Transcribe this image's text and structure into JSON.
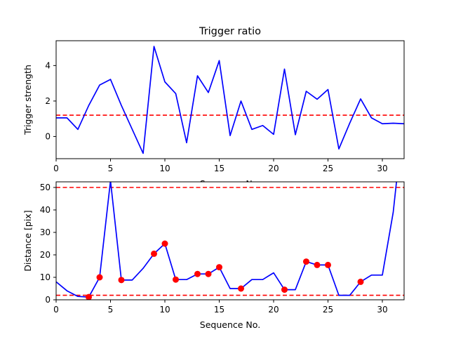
{
  "chart_data": [
    {
      "type": "line",
      "title": "Trigger ratio",
      "xlabel": "Sequence No.",
      "ylabel": "Trigger strength",
      "xlim": [
        0,
        32
      ],
      "ylim": [
        -1.25,
        5.4
      ],
      "xticks": [
        0,
        5,
        10,
        15,
        20,
        25,
        30
      ],
      "yticks": [
        0,
        2,
        4
      ],
      "grid": false,
      "series": [
        {
          "color": "#0000ff",
          "x": [
            0,
            1,
            2,
            3,
            4,
            5,
            6,
            7,
            8,
            9,
            10,
            11,
            12,
            13,
            14,
            15,
            16,
            17,
            18,
            19,
            20,
            21,
            22,
            23,
            24,
            25,
            26,
            27,
            28,
            29,
            30,
            31,
            32
          ],
          "values": [
            1.05,
            1.05,
            0.4,
            1.75,
            2.9,
            3.22,
            1.75,
            0.4,
            -0.95,
            5.08,
            3.08,
            2.42,
            -0.35,
            3.42,
            2.48,
            4.28,
            0.05,
            2.0,
            0.4,
            0.62,
            0.12,
            3.8,
            0.1,
            2.55,
            2.1,
            2.65,
            -0.7,
            0.75,
            2.12,
            1.05,
            0.72,
            0.75,
            0.72
          ]
        }
      ],
      "reference_lines": [
        {
          "axis": "y",
          "value": 1.2,
          "color": "#ff0000",
          "style": "dashed"
        }
      ]
    },
    {
      "type": "line",
      "title": "",
      "xlabel": "Sequence No.",
      "ylabel": "Distance [pix]",
      "xlim": [
        0,
        32
      ],
      "ylim": [
        0,
        52.5
      ],
      "xticks": [
        0,
        5,
        10,
        15,
        20,
        25,
        30
      ],
      "yticks": [
        0,
        10,
        20,
        30,
        40,
        50
      ],
      "grid": false,
      "series": [
        {
          "color": "#0000ff",
          "x": [
            0,
            1,
            2,
            3,
            4,
            5,
            6,
            7,
            8,
            9,
            10,
            11,
            12,
            13,
            14,
            15,
            16,
            17,
            18,
            19,
            20,
            21,
            22,
            23,
            24,
            25,
            26,
            27,
            28,
            29,
            30,
            31,
            31.3
          ],
          "values": [
            8,
            4,
            1.5,
            1.2,
            10,
            53,
            8.8,
            8.8,
            14,
            20.5,
            25,
            9,
            9,
            11.5,
            11.5,
            14.5,
            5,
            5,
            9,
            9,
            12,
            4.5,
            4.5,
            17,
            15.5,
            15.5,
            2,
            2,
            8,
            11,
            11,
            39,
            52.5
          ]
        },
        {
          "color": "#ff0000",
          "style": "markers",
          "x": [
            3,
            4,
            6,
            9,
            10,
            11,
            13,
            14,
            15,
            17,
            21,
            23,
            24,
            25,
            28
          ],
          "values": [
            1.2,
            10,
            8.8,
            20.5,
            25,
            9,
            11.5,
            11.5,
            14.5,
            5,
            4.5,
            17,
            15.5,
            15.5,
            8
          ]
        }
      ],
      "reference_lines": [
        {
          "axis": "y",
          "value": 50,
          "color": "#ff0000",
          "style": "dashed"
        },
        {
          "axis": "y",
          "value": 2,
          "color": "#ff0000",
          "style": "dashed"
        }
      ]
    }
  ]
}
